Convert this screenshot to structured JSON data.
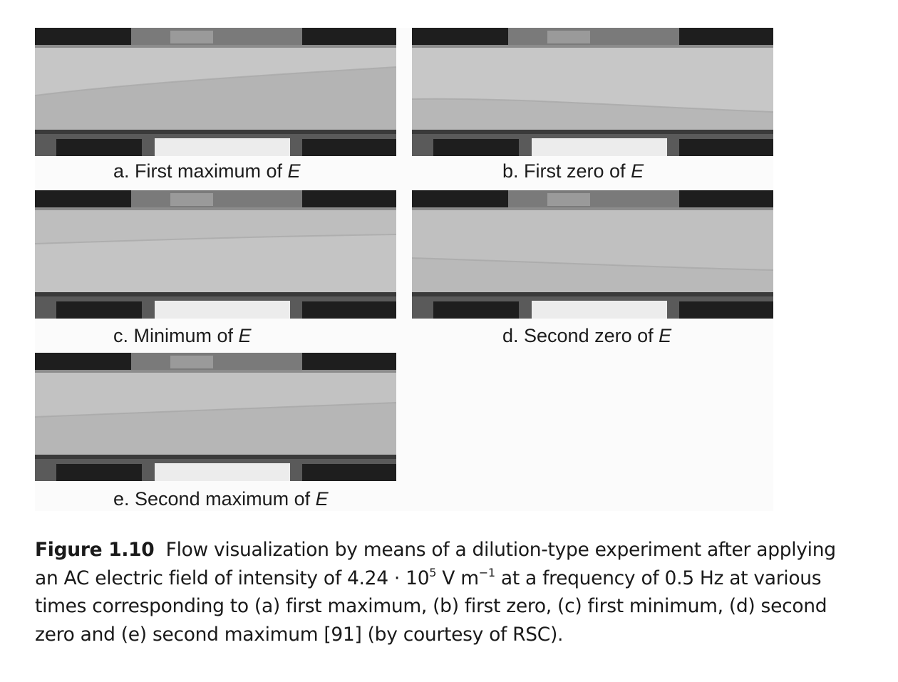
{
  "panels": [
    {
      "id": "a",
      "prefix": "a. First maximum of ",
      "variable": "E",
      "variant": "a"
    },
    {
      "id": "b",
      "prefix": "b. First zero of ",
      "variable": "E",
      "variant": "b"
    },
    {
      "id": "c",
      "prefix": "c. Minimum of ",
      "variable": "E",
      "variant": "c"
    },
    {
      "id": "d",
      "prefix": "d. Second zero of ",
      "variable": "E",
      "variant": "d"
    },
    {
      "id": "e",
      "prefix": "e. Second maximum of ",
      "variable": "E",
      "variant": "e"
    }
  ],
  "caption": {
    "label": "Figure 1.10",
    "text_1": "Flow visualization by means of a dilution-type experiment after applying an AC electric field of intensity of 4.24 · 10",
    "exp_1": "5",
    "text_2": " V m",
    "exp_2": "−1",
    "text_3": " at a frequency of 0.5 Hz at various times corresponding to (a) first maximum, (b) first zero, (c) first minimum, (d) second zero and (e) second maximum [91] (by courtesy of RSC)."
  },
  "colors": {
    "channel_gray": "#bdbdbd",
    "electrode_dark": "#1e1e1e",
    "wall_edge": "#3a3a3a",
    "gap_light": "#ececec"
  }
}
